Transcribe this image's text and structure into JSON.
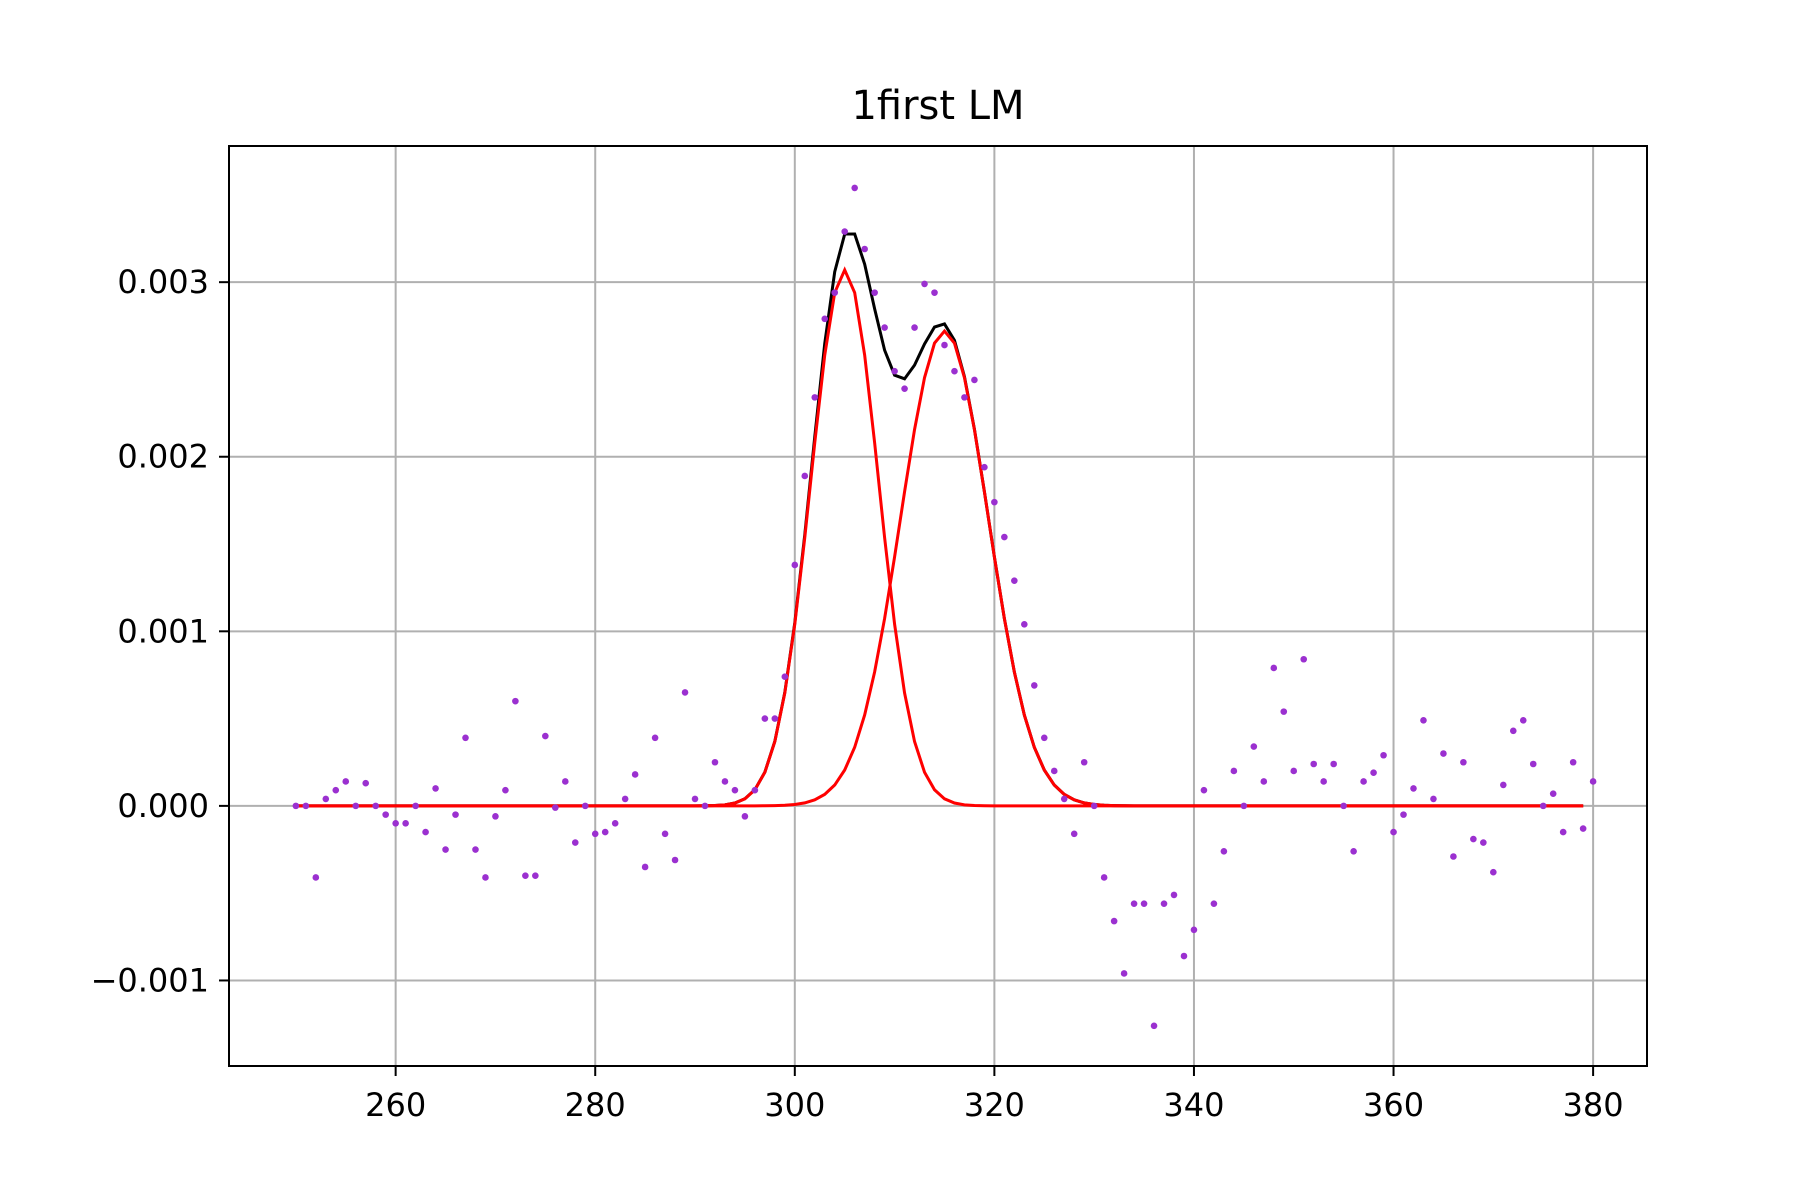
{
  "chart_data": {
    "type": "scatter",
    "title": "1first LM",
    "xlabel": "",
    "ylabel": "",
    "xlim": [
      243.3,
      385.4
    ],
    "ylim": [
      -0.00149,
      0.00378
    ],
    "grid": true,
    "legend": "none",
    "x_ticks": [
      260,
      280,
      300,
      320,
      340,
      360,
      380
    ],
    "x_tick_labels": [
      "260",
      "280",
      "300",
      "320",
      "340",
      "360",
      "380"
    ],
    "y_ticks": [
      -0.001,
      0.0,
      0.001,
      0.002,
      0.003
    ],
    "y_tick_labels": [
      "−0.001",
      "0.000",
      "0.001",
      "0.002",
      "0.003"
    ],
    "x_start": 250,
    "colors": {
      "points": "#9b30d0",
      "sum_curve": "#000000",
      "component_curves": "#ff0000",
      "grid": "#b0b0b0",
      "axes": "#000000"
    },
    "scatter_values": [
      0.0,
      0.0,
      -0.00041,
      4e-05,
      9e-05,
      0.00014,
      0.0,
      0.00013,
      0.0,
      -5e-05,
      -0.0001,
      -0.0001,
      0.0,
      -0.00015,
      0.0001,
      -0.00025,
      -5e-05,
      0.00039,
      -0.00025,
      -0.00041,
      -6e-05,
      9e-05,
      0.0006,
      -0.0004,
      -0.0004,
      0.0004,
      -1e-05,
      0.00014,
      -0.00021,
      0.0,
      -0.00016,
      -0.00015,
      -0.0001,
      4e-05,
      0.00018,
      -0.00035,
      0.00039,
      -0.00016,
      -0.00031,
      0.00065,
      4e-05,
      0.0,
      0.00025,
      0.00014,
      9e-05,
      -6e-05,
      9e-05,
      0.0005,
      0.0005,
      0.00074,
      0.00138,
      0.00189,
      0.00234,
      0.00279,
      0.00294,
      0.00329,
      0.00354,
      0.00319,
      0.00294,
      0.00274,
      0.00249,
      0.00239,
      0.00274,
      0.00299,
      0.00294,
      0.00264,
      0.00249,
      0.00234,
      0.00244,
      0.00194,
      0.00174,
      0.00154,
      0.00129,
      0.00104,
      0.00069,
      0.00039,
      0.0002,
      4e-05,
      -0.00016,
      0.00025,
      0.0,
      -0.00041,
      -0.00066,
      -0.00096,
      -0.00056,
      -0.00056,
      -0.00126,
      -0.00056,
      -0.00051,
      -0.00086,
      -0.00071,
      9e-05,
      -0.00056,
      -0.00026,
      0.0002,
      0.0,
      0.00034,
      0.00014,
      0.00079,
      0.00054,
      0.0002,
      0.00084,
      0.00024,
      0.00014,
      0.00024,
      0.0,
      -0.00026,
      0.00014,
      0.00019,
      0.00029,
      -0.00015,
      -5e-05,
      0.0001,
      0.00049,
      4e-05,
      0.0003,
      -0.00029,
      0.00025,
      -0.00019,
      -0.00021,
      -0.00038,
      0.00012,
      0.00043,
      0.00049,
      0.00024,
      0.0,
      7e-05,
      -0.00015,
      0.00025,
      -0.00013,
      0.00014
    ],
    "components": [
      {
        "amplitude": 0.00307,
        "center": 305.0,
        "sigma": 3.4
      },
      {
        "amplitude": 0.00272,
        "center": 315.0,
        "sigma": 4.4
      }
    ],
    "curve_x_range": [
      250,
      379
    ]
  }
}
